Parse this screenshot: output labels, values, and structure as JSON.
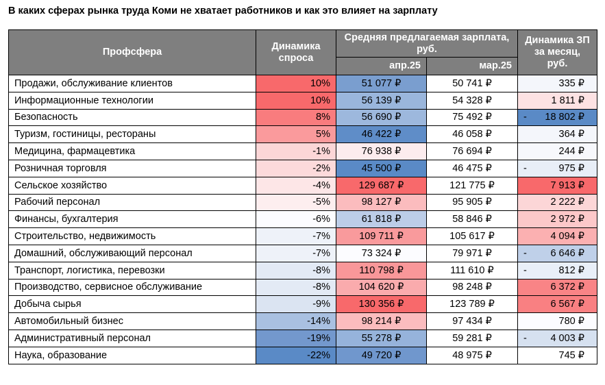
{
  "chart_data": {
    "type": "table",
    "title": "В каких сферах рынка труда Коми не хватает работников и как это влияет на зарплату",
    "headers": {
      "sphere": "Профсфера",
      "demand": "Динамика спроса",
      "salary_group": "Средняя предлагаемая зарплата, руб.",
      "apr": "апр.25",
      "mar": "мар.25",
      "change": "Динамика ЗП за месяц, руб."
    },
    "currency": "₽",
    "rows": [
      {
        "sphere": "Продажи, обслуживание клиентов",
        "demand": "10%",
        "apr": "51 077 ₽",
        "mar": "50 741 ₽",
        "change": "335 ₽",
        "neg": false,
        "c_d": "#f8696b",
        "c_a": "#7a9ecf",
        "c_c": "#f4f6fb"
      },
      {
        "sphere": "Информационные технологии",
        "demand": "10%",
        "apr": "56 139 ₽",
        "mar": "54 328 ₽",
        "change": "1 811 ₽",
        "neg": false,
        "c_d": "#f8696b",
        "c_a": "#9ab6dc",
        "c_c": "#fde2e3"
      },
      {
        "sphere": "Безопасность",
        "demand": "8%",
        "apr": "56 690 ₽",
        "mar": "75 492 ₽",
        "change": "18 802 ₽",
        "neg": true,
        "c_d": "#f97c7e",
        "c_a": "#9db8dd",
        "c_c": "#5a8ac6"
      },
      {
        "sphere": "Туризм, гостиницы, рестораны",
        "demand": "5%",
        "apr": "46 422 ₽",
        "mar": "46 058 ₽",
        "change": "364 ₽",
        "neg": false,
        "c_d": "#fa9a9c",
        "c_a": "#5f8dc8",
        "c_c": "#f4f6fb"
      },
      {
        "sphere": "Медицина, фармацевтика",
        "demand": "-1%",
        "apr": "76 938 ₽",
        "mar": "76 694 ₽",
        "change": "244 ₽",
        "neg": false,
        "c_d": "#fcd6d7",
        "c_a": "#fcecee",
        "c_c": "#f7f8fc"
      },
      {
        "sphere": "Розничная торговля",
        "demand": "-2%",
        "apr": "45 500 ₽",
        "mar": "46 475 ₽",
        "change": "975 ₽",
        "neg": true,
        "c_d": "#fcdadb",
        "c_a": "#5a8ac6",
        "c_c": "#e8eef7"
      },
      {
        "sphere": "Сельское хозяйство",
        "demand": "-4%",
        "apr": "129 687 ₽",
        "mar": "121 775 ₽",
        "change": "7 913 ₽",
        "neg": false,
        "c_d": "#fde6e7",
        "c_a": "#f8696b",
        "c_c": "#f8696b"
      },
      {
        "sphere": "Рабочий персонал",
        "demand": "-5%",
        "apr": "98 127 ₽",
        "mar": "95 905 ₽",
        "change": "2 222 ₽",
        "neg": false,
        "c_d": "#fdeeef",
        "c_a": "#fbbcbe",
        "c_c": "#fcd6d7"
      },
      {
        "sphere": "Финансы, бухгалтерия",
        "demand": "-6%",
        "apr": "61 818 ₽",
        "mar": "58 846 ₽",
        "change": "2 972 ₽",
        "neg": false,
        "c_d": "#fcfcff",
        "c_a": "#bccde8",
        "c_c": "#fcc8c9"
      },
      {
        "sphere": "Строительство, недвижимость",
        "demand": "-7%",
        "apr": "109 711 ₽",
        "mar": "105 617 ₽",
        "change": "4 094 ₽",
        "neg": false,
        "c_d": "#eef2f9",
        "c_a": "#f99a9c",
        "c_c": "#fbb0b1"
      },
      {
        "sphere": "Домашний, обслуживающий персонал",
        "demand": "-7%",
        "apr": "73 324 ₽",
        "mar": "79 971 ₽",
        "change": "6 646 ₽",
        "neg": true,
        "c_d": "#eef2f9",
        "c_a": "#fcfcff",
        "c_c": "#bfd0e9"
      },
      {
        "sphere": "Транспорт, логистика, перевозки",
        "demand": "-8%",
        "apr": "110 798 ₽",
        "mar": "111 610 ₽",
        "change": "812 ₽",
        "neg": true,
        "c_d": "#e3eaf5",
        "c_a": "#f99799",
        "c_c": "#e9eff8"
      },
      {
        "sphere": "Производство, сервисное обслуживание",
        "demand": "-8%",
        "apr": "104 620 ₽",
        "mar": "98 248 ₽",
        "change": "6 372 ₽",
        "neg": false,
        "c_d": "#e3eaf5",
        "c_a": "#faabad",
        "c_c": "#f98486"
      },
      {
        "sphere": "Добыча сырья",
        "demand": "-9%",
        "apr": "130 356 ₽",
        "mar": "123 789 ₽",
        "change": "6 567 ₽",
        "neg": false,
        "c_d": "#dbe4f2",
        "c_a": "#f8696b",
        "c_c": "#f98082"
      },
      {
        "sphere": "Автомобильный бизнес",
        "demand": "-14%",
        "apr": "98 214 ₽",
        "mar": "97 434 ₽",
        "change": "780 ₽",
        "neg": false,
        "c_d": "#a9c0e1",
        "c_a": "#fbbcbe",
        "c_c": "#fcfcff"
      },
      {
        "sphere": "Административный персонал",
        "demand": "-19%",
        "apr": "55 278 ₽",
        "mar": "59 281 ₽",
        "change": "4 003 ₽",
        "neg": true,
        "c_d": "#7398cd",
        "c_a": "#96b3db",
        "c_c": "#d6e1f0"
      },
      {
        "sphere": "Наука, образование",
        "demand": "-22%",
        "apr": "49 720 ₽",
        "mar": "48 975 ₽",
        "change": "745 ₽",
        "neg": false,
        "c_d": "#5a8ac6",
        "c_a": "#7097cd",
        "c_c": "#ffffff"
      }
    ]
  }
}
